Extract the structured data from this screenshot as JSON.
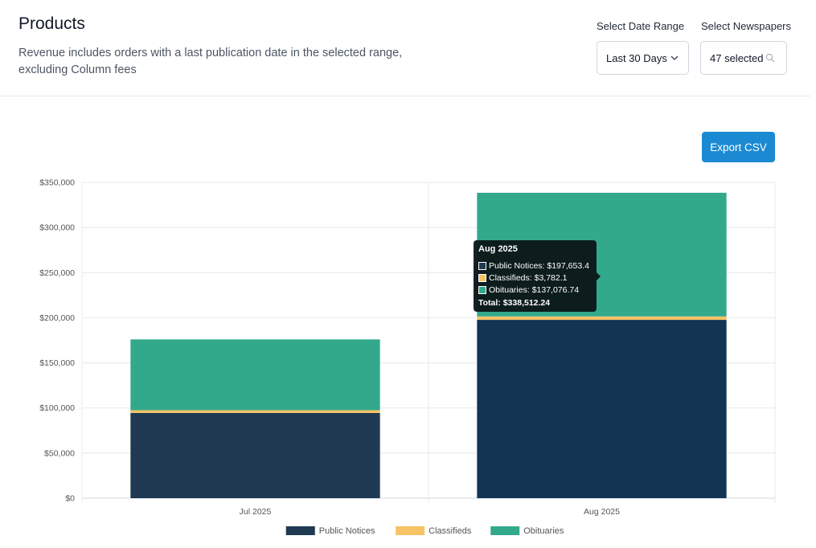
{
  "header": {
    "title": "Products",
    "subtitle": "Revenue includes orders with a last publication date in the selected range, excluding Column fees"
  },
  "controls": {
    "date_range_label": "Select Date Range",
    "date_range_value": "Last 30 Days",
    "newspapers_label": "Select Newspapers",
    "newspapers_value": "47 selected"
  },
  "toolbar": {
    "export_label": "Export CSV"
  },
  "colors": {
    "public_notices": "#1f3a52",
    "classifieds": "#f6c365",
    "obituaries": "#33a98c",
    "accent": "#1b8ad3"
  },
  "chart_data": {
    "type": "bar",
    "stacked": true,
    "categories": [
      "Jul 2025",
      "Aug 2025"
    ],
    "series": [
      {
        "name": "Public Notices",
        "values": [
          94500,
          197653.4
        ]
      },
      {
        "name": "Classifieds",
        "values": [
          3000,
          3782.1
        ]
      },
      {
        "name": "Obituaries",
        "values": [
          78500,
          137076.74
        ]
      }
    ],
    "ylim": [
      0,
      350000
    ],
    "yticks": [
      "$0",
      "$50,000",
      "$100,000",
      "$150,000",
      "$200,000",
      "$250,000",
      "$300,000",
      "$350,000"
    ],
    "grid": true,
    "legend_position": "bottom"
  },
  "tooltip": {
    "title": "Aug 2025",
    "rows": [
      "Public Notices: $197,653.4",
      "Classifieds: $3,782.1",
      "Obituaries: $137,076.74"
    ],
    "total": "Total: $338,512.24"
  }
}
